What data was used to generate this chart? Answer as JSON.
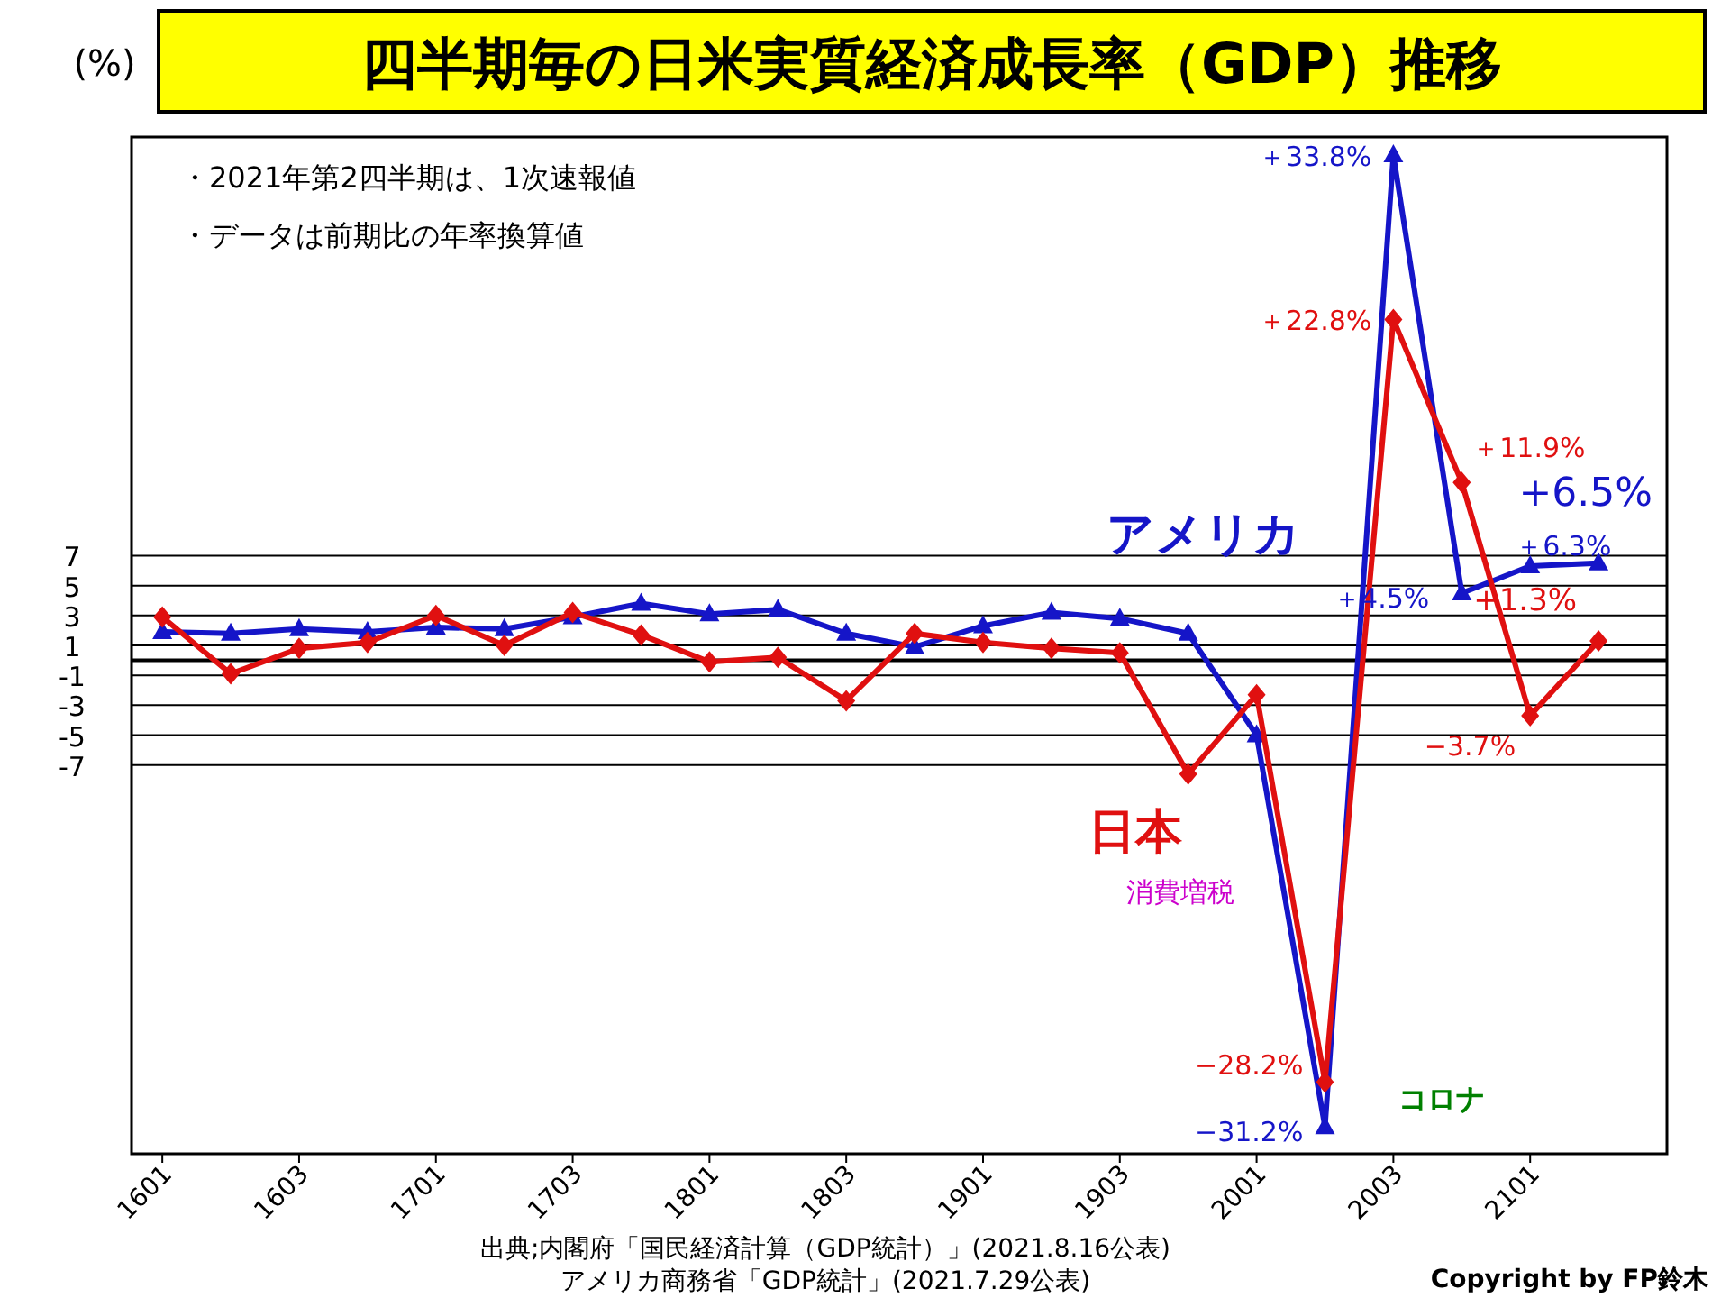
{
  "chart_data": {
    "type": "line",
    "title": "四半期毎の日米実質経済成長率（GDP）推移",
    "ylabel": "(%)",
    "categories": [
      "1601",
      null,
      "1603",
      null,
      "1701",
      null,
      "1703",
      null,
      "1801",
      null,
      "1803",
      null,
      "1901",
      null,
      "1903",
      null,
      "2001",
      null,
      "2003",
      null,
      "2101",
      null
    ],
    "series": [
      {
        "name": "アメリカ",
        "color": "#1515c8",
        "marker": "triangle",
        "values": [
          1.9,
          1.8,
          2.1,
          1.9,
          2.2,
          2.1,
          2.9,
          3.8,
          3.1,
          3.4,
          1.8,
          0.9,
          2.3,
          3.2,
          2.8,
          1.8,
          -5.0,
          -31.2,
          33.8,
          4.5,
          6.3,
          6.5
        ],
        "value_labels": [
          null,
          null,
          null,
          null,
          null,
          null,
          null,
          null,
          null,
          null,
          null,
          null,
          null,
          null,
          null,
          null,
          null,
          "−31.2%",
          "＋33.8%",
          "＋4.5%",
          "＋6.3%",
          "+6.5%"
        ]
      },
      {
        "name": "日本",
        "color": "#e01010",
        "marker": "diamond",
        "values": [
          2.9,
          -0.9,
          0.8,
          1.2,
          3.0,
          1.0,
          3.2,
          1.7,
          -0.1,
          0.2,
          -2.7,
          1.8,
          1.2,
          0.8,
          0.5,
          -7.6,
          -2.3,
          -28.2,
          22.8,
          11.9,
          -3.7,
          1.3
        ],
        "value_labels": [
          null,
          null,
          null,
          null,
          null,
          null,
          null,
          null,
          null,
          null,
          null,
          null,
          null,
          null,
          null,
          null,
          null,
          "−28.2%",
          "＋22.8%",
          "＋11.9%",
          "−3.7%",
          "+1.3%"
        ]
      }
    ],
    "ylim": [
      -33,
      35
    ],
    "yticks": [
      -7,
      -5,
      -3,
      -1,
      1,
      3,
      5,
      7
    ],
    "grid": "y",
    "annotations": [
      "・2021年第2四半期は、1次速報値",
      "・データは前期比の年率換算値",
      "消費増税",
      "コロナ",
      "出典;内閣府「国民経済計算（GDP統計）」(2021.8.16公表)",
      "アメリカ商務省「GDP統計」(2021.7.29公表)",
      "Copyright by FP鈴木"
    ]
  }
}
